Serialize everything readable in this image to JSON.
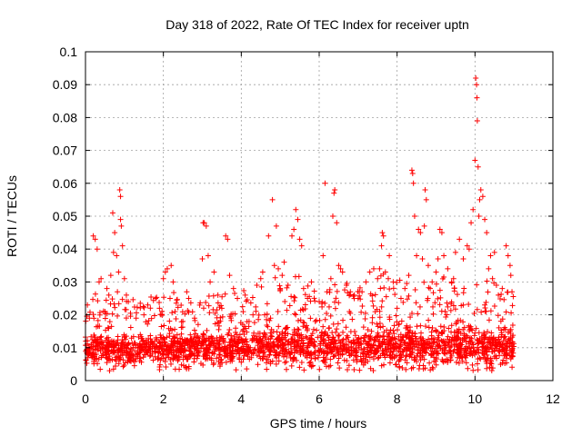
{
  "chart_data": {
    "type": "scatter",
    "title": "Day 318 of 2022, Rate Of TEC Index for receiver uptn",
    "xlabel": "GPS time / hours",
    "ylabel": "ROTI / TECUs",
    "xlim": [
      0,
      12
    ],
    "ylim": [
      0,
      0.1
    ],
    "xticks": [
      0,
      2,
      4,
      6,
      8,
      10,
      12
    ],
    "xtick_labels": [
      "0",
      "2",
      "4",
      "6",
      "8",
      "10",
      "12"
    ],
    "yticks": [
      0,
      0.01,
      0.02,
      0.03,
      0.04,
      0.05,
      0.06,
      0.07,
      0.08,
      0.09,
      0.1
    ],
    "ytick_labels": [
      "0",
      "0.01",
      "0.02",
      "0.03",
      "0.04",
      "0.05",
      "0.06",
      "0.07",
      "0.08",
      "0.09",
      "0.1"
    ],
    "grid": true,
    "marker": "+",
    "color": "#ff0000",
    "data_range_hours": [
      0,
      11
    ],
    "baseline_band": [
      0.005,
      0.015
    ],
    "series": [
      {
        "name": "uptn",
        "points": [
          [
            0.05,
            0.023
          ],
          [
            0.1,
            0.019
          ],
          [
            0.2,
            0.044
          ],
          [
            0.25,
            0.043
          ],
          [
            0.3,
            0.04
          ],
          [
            0.35,
            0.03
          ],
          [
            0.4,
            0.031
          ],
          [
            0.5,
            0.021
          ],
          [
            0.55,
            0.028
          ],
          [
            0.6,
            0.026
          ],
          [
            0.65,
            0.032
          ],
          [
            0.7,
            0.051
          ],
          [
            0.72,
            0.039
          ],
          [
            0.75,
            0.045
          ],
          [
            0.8,
            0.038
          ],
          [
            0.82,
            0.027
          ],
          [
            0.85,
            0.033
          ],
          [
            0.88,
            0.058
          ],
          [
            0.9,
            0.056
          ],
          [
            0.9,
            0.049
          ],
          [
            0.92,
            0.047
          ],
          [
            0.95,
            0.041
          ],
          [
            1.0,
            0.031
          ],
          [
            1.05,
            0.026
          ],
          [
            1.1,
            0.024
          ],
          [
            1.3,
            0.019
          ],
          [
            1.5,
            0.02
          ],
          [
            1.6,
            0.023
          ],
          [
            1.8,
            0.025
          ],
          [
            1.9,
            0.022
          ],
          [
            2.0,
            0.031
          ],
          [
            2.05,
            0.033
          ],
          [
            2.1,
            0.034
          ],
          [
            2.2,
            0.035
          ],
          [
            2.25,
            0.03
          ],
          [
            2.3,
            0.021
          ],
          [
            2.5,
            0.018
          ],
          [
            2.6,
            0.027
          ],
          [
            2.65,
            0.025
          ],
          [
            2.8,
            0.019
          ],
          [
            3.0,
            0.037
          ],
          [
            3.02,
            0.048
          ],
          [
            3.05,
            0.048
          ],
          [
            3.1,
            0.047
          ],
          [
            3.15,
            0.038
          ],
          [
            3.2,
            0.03
          ],
          [
            3.3,
            0.033
          ],
          [
            3.4,
            0.026
          ],
          [
            3.5,
            0.022
          ],
          [
            3.6,
            0.044
          ],
          [
            3.65,
            0.043
          ],
          [
            3.7,
            0.032
          ],
          [
            3.8,
            0.028
          ],
          [
            3.9,
            0.025
          ],
          [
            4.1,
            0.026
          ],
          [
            4.2,
            0.018
          ],
          [
            4.3,
            0.02
          ],
          [
            4.4,
            0.029
          ],
          [
            4.5,
            0.031
          ],
          [
            4.55,
            0.033
          ],
          [
            4.6,
            0.02
          ],
          [
            4.7,
            0.044
          ],
          [
            4.8,
            0.055
          ],
          [
            4.85,
            0.035
          ],
          [
            4.9,
            0.047
          ],
          [
            4.95,
            0.034
          ],
          [
            5.0,
            0.028
          ],
          [
            5.05,
            0.032
          ],
          [
            5.1,
            0.036
          ],
          [
            5.2,
            0.029
          ],
          [
            5.3,
            0.044
          ],
          [
            5.35,
            0.046
          ],
          [
            5.4,
            0.052
          ],
          [
            5.45,
            0.049
          ],
          [
            5.5,
            0.043
          ],
          [
            5.55,
            0.041
          ],
          [
            5.6,
            0.028
          ],
          [
            5.7,
            0.025
          ],
          [
            5.8,
            0.03
          ],
          [
            5.9,
            0.018
          ],
          [
            6.0,
            0.024
          ],
          [
            6.1,
            0.038
          ],
          [
            6.15,
            0.06
          ],
          [
            6.2,
            0.027
          ],
          [
            6.3,
            0.031
          ],
          [
            6.35,
            0.05
          ],
          [
            6.38,
            0.057
          ],
          [
            6.4,
            0.058
          ],
          [
            6.45,
            0.048
          ],
          [
            6.5,
            0.035
          ],
          [
            6.55,
            0.034
          ],
          [
            6.6,
            0.033
          ],
          [
            6.7,
            0.029
          ],
          [
            6.8,
            0.027
          ],
          [
            6.9,
            0.026
          ],
          [
            7.0,
            0.025
          ],
          [
            7.1,
            0.027
          ],
          [
            7.2,
            0.03
          ],
          [
            7.3,
            0.033
          ],
          [
            7.4,
            0.034
          ],
          [
            7.5,
            0.031
          ],
          [
            7.55,
            0.034
          ],
          [
            7.6,
            0.041
          ],
          [
            7.62,
            0.045
          ],
          [
            7.65,
            0.044
          ],
          [
            7.7,
            0.033
          ],
          [
            7.8,
            0.038
          ],
          [
            7.9,
            0.03
          ],
          [
            8.0,
            0.022
          ],
          [
            8.1,
            0.025
          ],
          [
            8.2,
            0.028
          ],
          [
            8.3,
            0.032
          ],
          [
            8.38,
            0.064
          ],
          [
            8.4,
            0.063
          ],
          [
            8.42,
            0.06
          ],
          [
            8.45,
            0.05
          ],
          [
            8.5,
            0.038
          ],
          [
            8.55,
            0.046
          ],
          [
            8.6,
            0.045
          ],
          [
            8.65,
            0.037
          ],
          [
            8.7,
            0.047
          ],
          [
            8.72,
            0.058
          ],
          [
            8.75,
            0.055
          ],
          [
            8.8,
            0.035
          ],
          [
            8.85,
            0.028
          ],
          [
            8.9,
            0.03
          ],
          [
            9.0,
            0.033
          ],
          [
            9.05,
            0.037
          ],
          [
            9.1,
            0.046
          ],
          [
            9.15,
            0.045
          ],
          [
            9.2,
            0.038
          ],
          [
            9.3,
            0.034
          ],
          [
            9.4,
            0.03
          ],
          [
            9.45,
            0.031
          ],
          [
            9.5,
            0.039
          ],
          [
            9.6,
            0.043
          ],
          [
            9.7,
            0.037
          ],
          [
            9.8,
            0.041
          ],
          [
            9.85,
            0.04
          ],
          [
            9.9,
            0.048
          ],
          [
            9.95,
            0.052
          ],
          [
            10.0,
            0.067
          ],
          [
            10.02,
            0.092
          ],
          [
            10.04,
            0.09
          ],
          [
            10.05,
            0.086
          ],
          [
            10.06,
            0.079
          ],
          [
            10.08,
            0.065
          ],
          [
            10.1,
            0.05
          ],
          [
            10.12,
            0.055
          ],
          [
            10.15,
            0.058
          ],
          [
            10.2,
            0.056
          ],
          [
            10.25,
            0.049
          ],
          [
            10.3,
            0.045
          ],
          [
            10.35,
            0.034
          ],
          [
            10.4,
            0.038
          ],
          [
            10.45,
            0.031
          ],
          [
            10.5,
            0.039
          ],
          [
            10.55,
            0.029
          ],
          [
            10.6,
            0.026
          ],
          [
            10.7,
            0.028
          ],
          [
            10.8,
            0.041
          ],
          [
            10.85,
            0.038
          ],
          [
            10.9,
            0.035
          ],
          [
            10.92,
            0.032
          ],
          [
            10.95,
            0.027
          ]
        ]
      }
    ]
  }
}
